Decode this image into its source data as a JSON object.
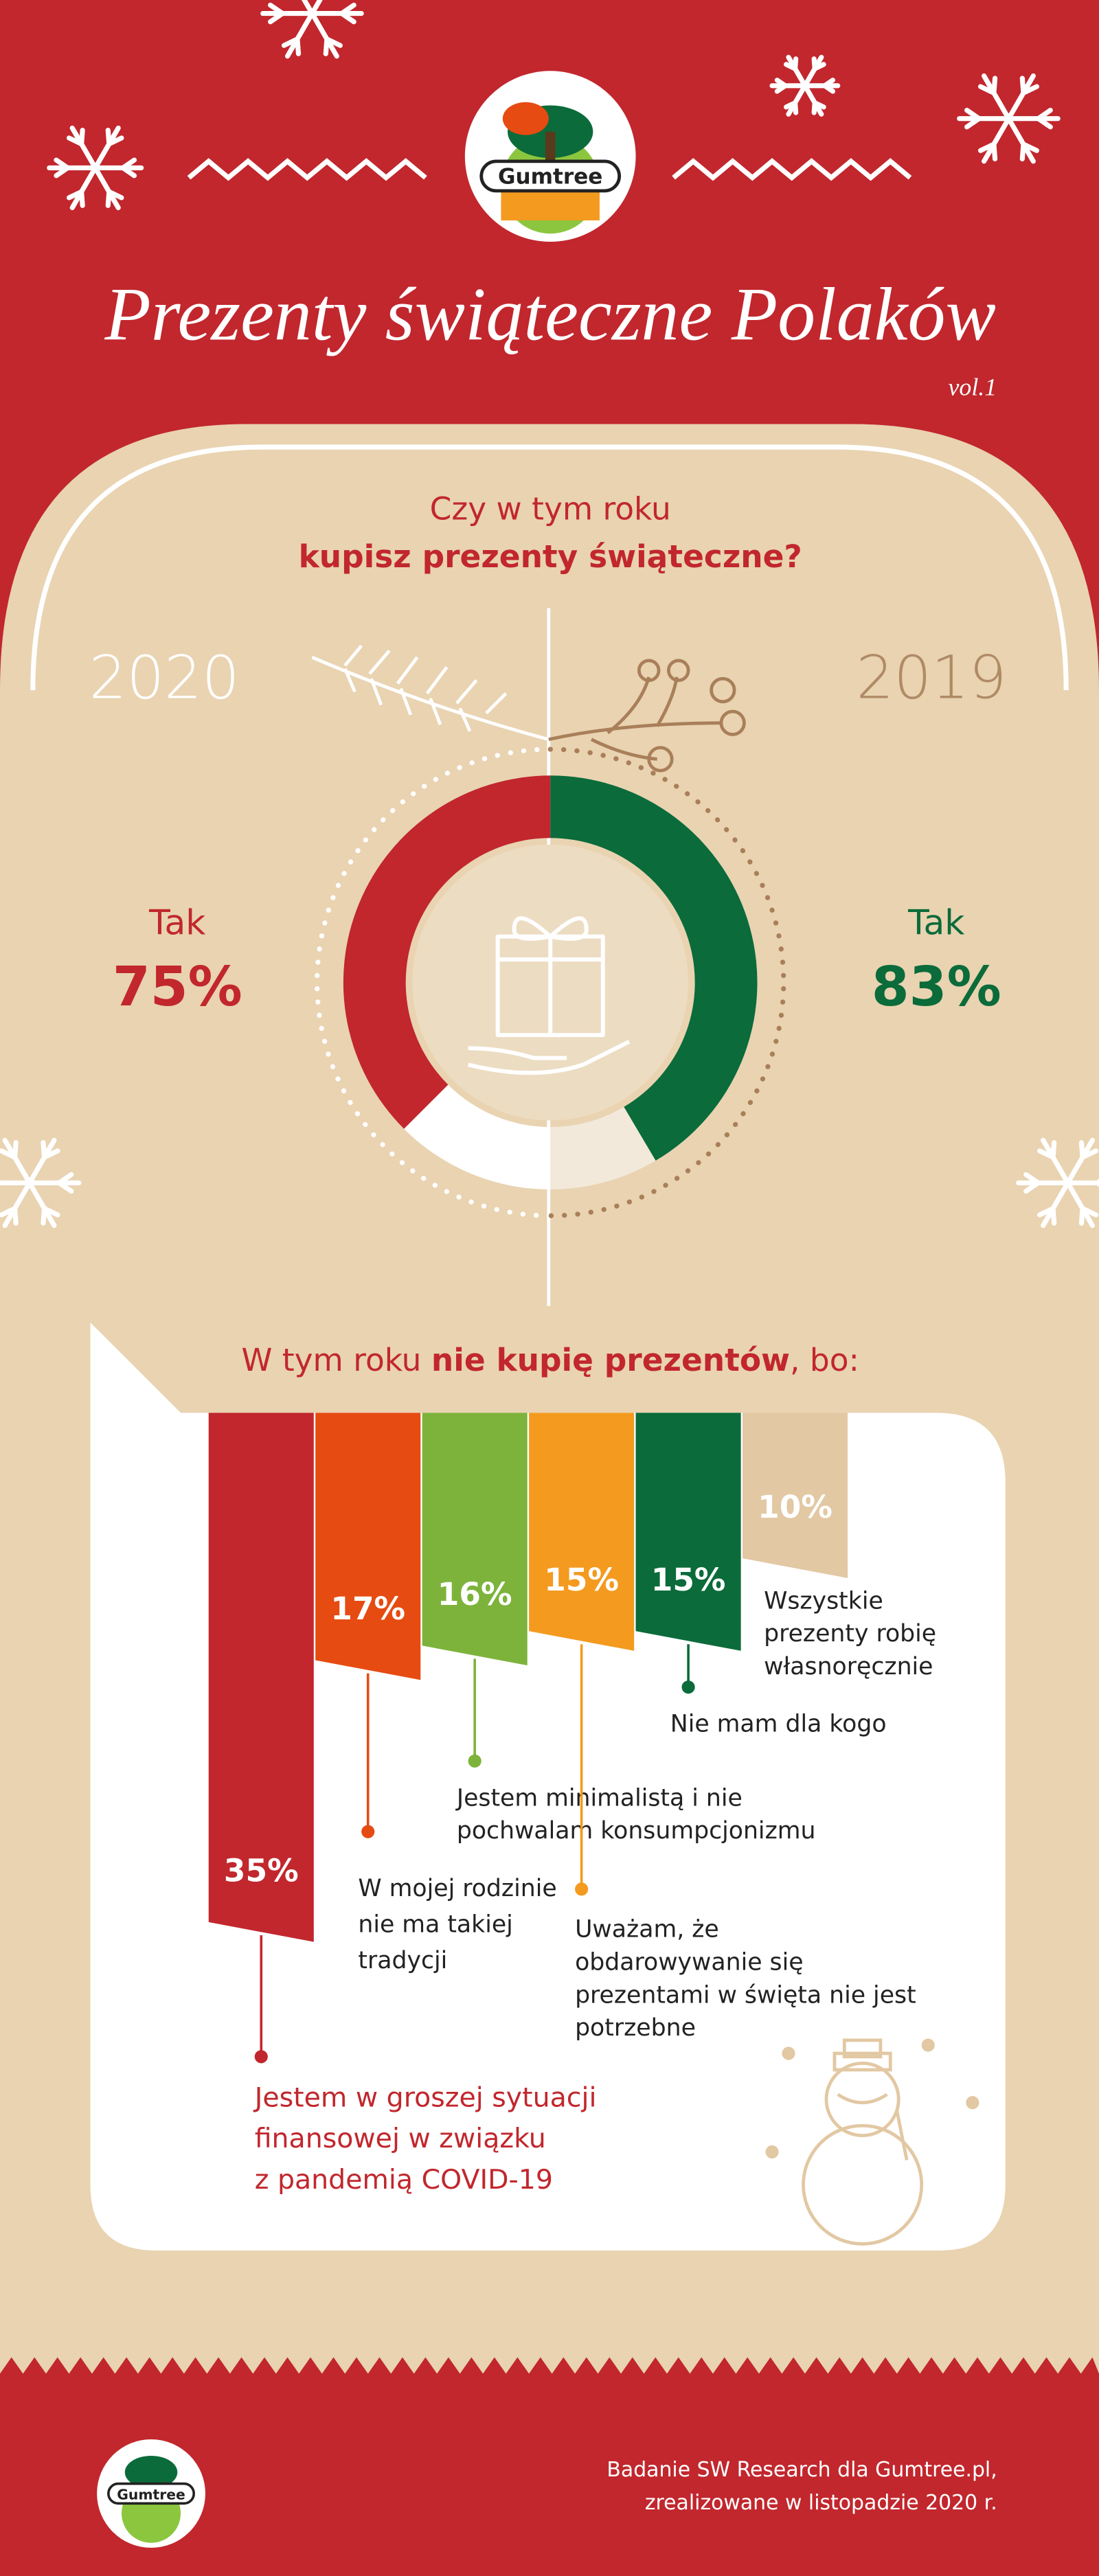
{
  "header": {
    "brand": "Gumtree",
    "title": "Prezenty świąteczne Polaków",
    "edition": "vol.1"
  },
  "chart_data": [
    {
      "type": "donut",
      "title": [
        "Czy w tym roku",
        "kupisz prezenty świąteczne?"
      ],
      "series": [
        {
          "name": "2020",
          "label": "Tak",
          "value": 75,
          "value_label": "75%",
          "color": "#c1272d"
        },
        {
          "name": "2019",
          "label": "Tak",
          "value": 83,
          "value_label": "83%",
          "color": "#0b6b3a"
        }
      ]
    },
    {
      "type": "ribbon-bar",
      "title": [
        "W tym roku ",
        "nie kupię prezentów",
        ", bo:"
      ],
      "categories": [
        [
          "Jestem w groszej sytuacji",
          "finansowej w związku",
          "z pandemią COVID-19"
        ],
        [
          "W mojej rodzinie",
          "nie ma takiej",
          "tradycji"
        ],
        [
          "Jestem minimalistą i nie",
          "pochwalam konsumpcjonizmu"
        ],
        [
          "Uważam, że",
          "obdarowywanie się",
          "prezentami w święta nie jest",
          "potrzebne"
        ],
        [
          "Nie mam dla kogo"
        ],
        [
          "Wszystkie",
          "prezenty robię",
          "własnoręcznie"
        ]
      ],
      "values": [
        35,
        17,
        16,
        15,
        15,
        10
      ],
      "value_labels": [
        "35%",
        "17%",
        "16%",
        "15%",
        "15%",
        "10%"
      ],
      "colors": [
        "#c1272d",
        "#e64b12",
        "#7db33b",
        "#f39a1f",
        "#0b6b3a",
        "#e2c8a3"
      ]
    }
  ],
  "footer": {
    "brand": "Gumtree",
    "note": [
      "Badanie SW Research dla Gumtree.pl,",
      "zrealizowane w listopadzie 2020 r."
    ]
  }
}
